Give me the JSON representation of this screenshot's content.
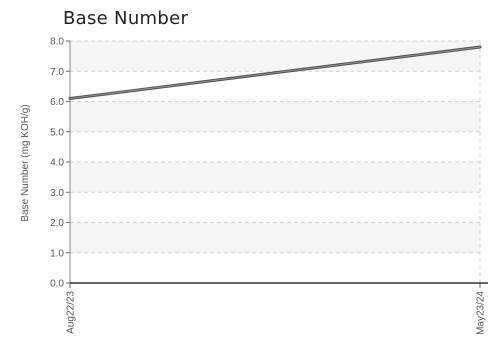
{
  "chart_data": {
    "type": "line",
    "title": "Base Number",
    "ylabel": "Base Number (mg KOH/g)",
    "xlabel": "",
    "x_ticks": [
      "Aug22/23",
      "May23/24"
    ],
    "y_ticks": [
      "0.0",
      "1.0",
      "2.0",
      "3.0",
      "4.0",
      "5.0",
      "6.0",
      "7.0",
      "8.0"
    ],
    "ylim": [
      0,
      8
    ],
    "grid": true,
    "legend": "none",
    "series": [
      {
        "x": [
          "Aug22/23",
          "May23/24"
        ],
        "values": [
          6.1,
          7.8
        ],
        "color": "#555555"
      }
    ]
  }
}
